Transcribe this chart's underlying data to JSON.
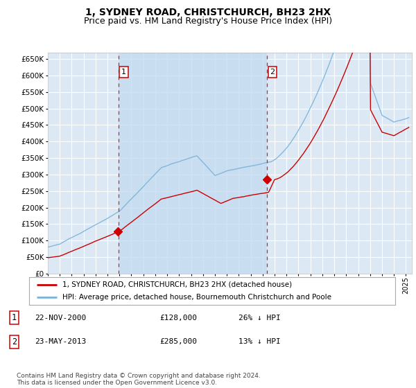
{
  "title": "1, SYDNEY ROAD, CHRISTCHURCH, BH23 2HX",
  "subtitle": "Price paid vs. HM Land Registry's House Price Index (HPI)",
  "ylim": [
    0,
    670000
  ],
  "yticks": [
    0,
    50000,
    100000,
    150000,
    200000,
    250000,
    300000,
    350000,
    400000,
    450000,
    500000,
    550000,
    600000,
    650000
  ],
  "xlim_start": 1995.0,
  "xlim_end": 2025.5,
  "background_color": "#ffffff",
  "plot_bg_color": "#dce9f5",
  "shade_color": "#c5dbf0",
  "grid_color": "#ffffff",
  "hpi_color": "#7ab3d9",
  "price_color": "#cc0000",
  "marker1_date": 2000.9,
  "marker1_price": 128000,
  "marker1_label": "1",
  "marker2_date": 2013.37,
  "marker2_price": 285000,
  "marker2_label": "2",
  "legend_line1": "1, SYDNEY ROAD, CHRISTCHURCH, BH23 2HX (detached house)",
  "legend_line2": "HPI: Average price, detached house, Bournemouth Christchurch and Poole",
  "footer": "Contains HM Land Registry data © Crown copyright and database right 2024.\nThis data is licensed under the Open Government Licence v3.0.",
  "title_fontsize": 10,
  "subtitle_fontsize": 9,
  "tick_fontsize": 7.5,
  "legend_fontsize": 7.5,
  "annotation_fontsize": 8,
  "footer_fontsize": 6.5
}
